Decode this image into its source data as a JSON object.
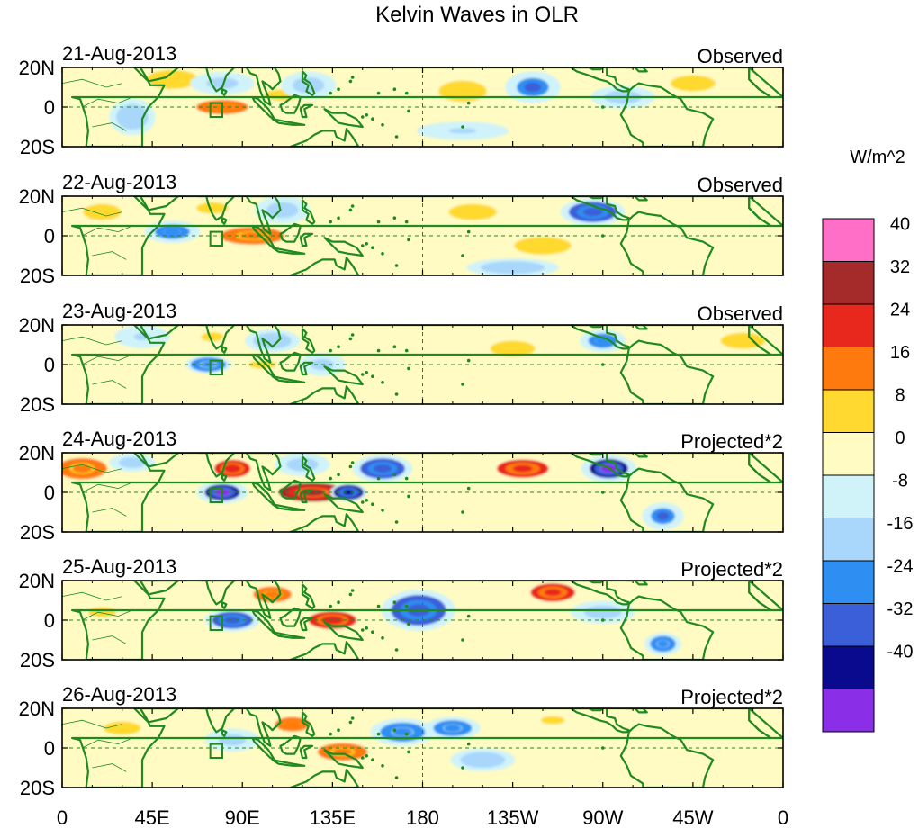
{
  "chart_data": {
    "type": "heatmap",
    "title": "Kelvin Waves in OLR",
    "colorbar": {
      "units": "W/m^2",
      "tick_labels": [
        "40",
        "32",
        "24",
        "16",
        "8",
        "0",
        "-8",
        "-16",
        "-24",
        "-32",
        "-40"
      ],
      "levels": [
        40,
        32,
        24,
        16,
        8,
        0,
        -8,
        -16,
        -24,
        -32,
        -40
      ],
      "colors": [
        "#ff6ec7",
        "#a52a2a",
        "#e8281c",
        "#ff7a0e",
        "#ffd92f",
        "#fffbc2",
        "#d0f3fa",
        "#a9d7fb",
        "#2e8ef2",
        "#3a5fd8",
        "#0a0a8e",
        "#8a2ee8"
      ]
    },
    "x_ticks": {
      "labels": [
        "0",
        "45E",
        "90E",
        "135E",
        "180",
        "135W",
        "90W",
        "45W",
        "0"
      ],
      "values": [
        0,
        45,
        90,
        135,
        180,
        225,
        270,
        315,
        360
      ]
    },
    "y_ticks": {
      "labels": [
        "20N",
        "0",
        "20S"
      ],
      "values": [
        20,
        0,
        -20
      ]
    },
    "xlim": [
      0,
      360
    ],
    "ylim": [
      -20,
      20
    ],
    "panels": [
      {
        "date": "21-Aug-2013",
        "label": "Observed",
        "features": [
          {
            "lon": 80,
            "lat": 0,
            "value": 22,
            "rx": 18,
            "ry": 5
          },
          {
            "lon": 110,
            "lat": 6,
            "value": 14,
            "rx": 16,
            "ry": 5
          },
          {
            "lon": 55,
            "lat": 14,
            "value": 10,
            "rx": 16,
            "ry": 6
          },
          {
            "lon": 80,
            "lat": 12,
            "value": -14,
            "rx": 14,
            "ry": 5
          },
          {
            "lon": 123,
            "lat": 11,
            "value": -12,
            "rx": 12,
            "ry": 6
          },
          {
            "lon": 235,
            "lat": 10,
            "value": -24,
            "rx": 12,
            "ry": 7
          },
          {
            "lon": 200,
            "lat": 8,
            "value": 12,
            "rx": 18,
            "ry": 8
          },
          {
            "lon": 280,
            "lat": 5,
            "value": -12,
            "rx": 14,
            "ry": 5
          },
          {
            "lon": 200,
            "lat": -12,
            "value": -8,
            "rx": 20,
            "ry": 4
          },
          {
            "lon": 315,
            "lat": 12,
            "value": 10,
            "rx": 14,
            "ry": 5
          },
          {
            "lon": 35,
            "lat": -5,
            "value": -10,
            "rx": 10,
            "ry": 8
          }
        ]
      },
      {
        "date": "22-Aug-2013",
        "label": "Observed",
        "features": [
          {
            "lon": 95,
            "lat": 0,
            "value": 18,
            "rx": 18,
            "ry": 5
          },
          {
            "lon": 75,
            "lat": 14,
            "value": 14,
            "rx": 14,
            "ry": 5
          },
          {
            "lon": 55,
            "lat": 2,
            "value": -22,
            "rx": 12,
            "ry": 5
          },
          {
            "lon": 110,
            "lat": 13,
            "value": -12,
            "rx": 12,
            "ry": 6
          },
          {
            "lon": 265,
            "lat": 12,
            "value": -28,
            "rx": 14,
            "ry": 6
          },
          {
            "lon": 205,
            "lat": 12,
            "value": 12,
            "rx": 18,
            "ry": 6
          },
          {
            "lon": 240,
            "lat": -5,
            "value": 9,
            "rx": 16,
            "ry": 5
          },
          {
            "lon": 225,
            "lat": -16,
            "value": -10,
            "rx": 20,
            "ry": 4
          },
          {
            "lon": 20,
            "lat": 12,
            "value": 10,
            "rx": 12,
            "ry": 5
          }
        ]
      },
      {
        "date": "23-Aug-2013",
        "label": "Observed",
        "features": [
          {
            "lon": 75,
            "lat": 14,
            "value": 14,
            "rx": 10,
            "ry": 4
          },
          {
            "lon": 100,
            "lat": 0,
            "value": 16,
            "rx": 14,
            "ry": 4
          },
          {
            "lon": 73,
            "lat": 0,
            "value": -18,
            "rx": 10,
            "ry": 4
          },
          {
            "lon": 130,
            "lat": 0,
            "value": -14,
            "rx": 10,
            "ry": 5
          },
          {
            "lon": 105,
            "lat": 12,
            "value": -10,
            "rx": 12,
            "ry": 5
          },
          {
            "lon": 270,
            "lat": 12,
            "value": -22,
            "rx": 10,
            "ry": 5
          },
          {
            "lon": 225,
            "lat": 8,
            "value": 10,
            "rx": 14,
            "ry": 5
          },
          {
            "lon": 340,
            "lat": 12,
            "value": 10,
            "rx": 14,
            "ry": 5
          },
          {
            "lon": 40,
            "lat": 14,
            "value": -8,
            "rx": 12,
            "ry": 5
          }
        ]
      },
      {
        "date": "24-Aug-2013",
        "label": "Projected*2",
        "features": [
          {
            "lon": 85,
            "lat": 12,
            "value": 32,
            "rx": 12,
            "ry": 6
          },
          {
            "lon": 125,
            "lat": 0,
            "value": 34,
            "rx": 18,
            "ry": 5
          },
          {
            "lon": 80,
            "lat": 0,
            "value": -40,
            "rx": 11,
            "ry": 5
          },
          {
            "lon": 143,
            "lat": 0,
            "value": -34,
            "rx": 8,
            "ry": 4
          },
          {
            "lon": 160,
            "lat": 12,
            "value": -28,
            "rx": 13,
            "ry": 6
          },
          {
            "lon": 273,
            "lat": 12,
            "value": -40,
            "rx": 12,
            "ry": 6
          },
          {
            "lon": 230,
            "lat": 12,
            "value": 26,
            "rx": 14,
            "ry": 5
          },
          {
            "lon": 10,
            "lat": 12,
            "value": 18,
            "rx": 14,
            "ry": 6
          },
          {
            "lon": 120,
            "lat": 14,
            "value": -12,
            "rx": 12,
            "ry": 5
          },
          {
            "lon": 300,
            "lat": -12,
            "value": -24,
            "rx": 9,
            "ry": 6
          },
          {
            "lon": 35,
            "lat": 15,
            "value": -12,
            "rx": 10,
            "ry": 4
          }
        ]
      },
      {
        "date": "25-Aug-2013",
        "label": "Projected*2",
        "features": [
          {
            "lon": 135,
            "lat": 0,
            "value": 32,
            "rx": 16,
            "ry": 6
          },
          {
            "lon": 105,
            "lat": 13,
            "value": 20,
            "rx": 12,
            "ry": 5
          },
          {
            "lon": 85,
            "lat": 0,
            "value": -28,
            "rx": 12,
            "ry": 5
          },
          {
            "lon": 178,
            "lat": 5,
            "value": -28,
            "rx": 16,
            "ry": 9
          },
          {
            "lon": 245,
            "lat": 14,
            "value": 26,
            "rx": 12,
            "ry": 5
          },
          {
            "lon": 20,
            "lat": 4,
            "value": 16,
            "rx": 14,
            "ry": 5
          },
          {
            "lon": 300,
            "lat": -12,
            "value": -20,
            "rx": 8,
            "ry": 5
          },
          {
            "lon": 270,
            "lat": 4,
            "value": -12,
            "rx": 14,
            "ry": 5
          }
        ]
      },
      {
        "date": "26-Aug-2013",
        "label": "Projected*2",
        "features": [
          {
            "lon": 115,
            "lat": 12,
            "value": 22,
            "rx": 12,
            "ry": 5
          },
          {
            "lon": 140,
            "lat": -2,
            "value": 18,
            "rx": 14,
            "ry": 5
          },
          {
            "lon": 170,
            "lat": 8,
            "value": -20,
            "rx": 14,
            "ry": 6
          },
          {
            "lon": 195,
            "lat": 10,
            "value": -20,
            "rx": 12,
            "ry": 5
          },
          {
            "lon": 245,
            "lat": 14,
            "value": 16,
            "rx": 12,
            "ry": 4
          },
          {
            "lon": 85,
            "lat": 4,
            "value": -14,
            "rx": 12,
            "ry": 5
          },
          {
            "lon": 30,
            "lat": 10,
            "value": 12,
            "rx": 14,
            "ry": 5
          },
          {
            "lon": 210,
            "lat": -6,
            "value": -10,
            "rx": 14,
            "ry": 5
          }
        ]
      }
    ]
  }
}
